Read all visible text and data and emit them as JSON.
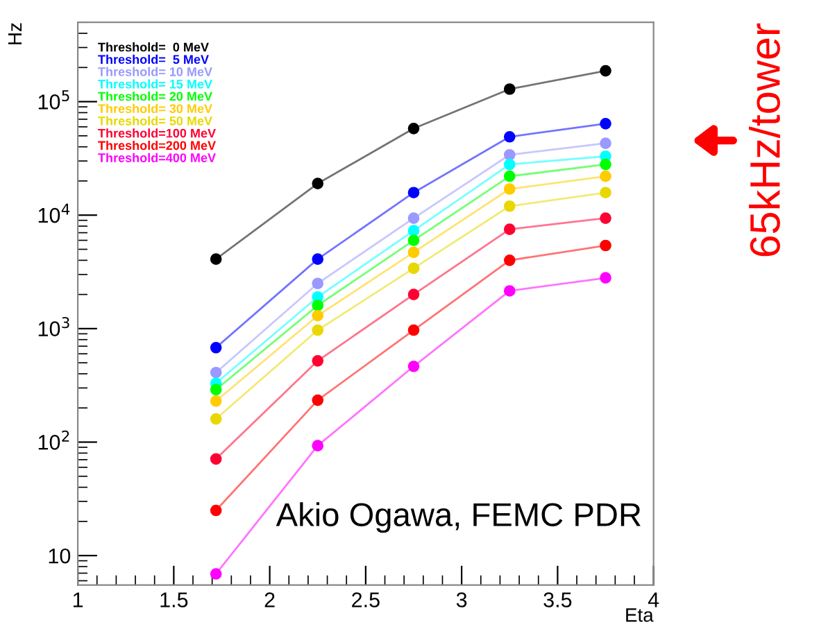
{
  "chart_data": {
    "type": "line",
    "xlabel": "Eta",
    "ylabel": "Hz",
    "log": "y",
    "marker": "circle",
    "line_style": "solid",
    "legend": "top left",
    "grid": false,
    "x": [
      1.72,
      2.25,
      2.75,
      3.25,
      3.75
    ],
    "xlim": [
      1,
      4
    ],
    "xticks": [
      1,
      1.5,
      2,
      2.5,
      3,
      3.5,
      4
    ],
    "ylim": [
      5.5,
      500000
    ],
    "yticks": [
      {
        "value": 10,
        "label": "10"
      },
      {
        "value": 100,
        "label": "10$^{2}$"
      },
      {
        "value": 1000,
        "label": "10$^{3}$"
      },
      {
        "value": 10000,
        "label": "10$^{4}$"
      },
      {
        "value": 100000,
        "label": "10$^{5}$"
      }
    ],
    "series": [
      {
        "name": "Threshold=  0 MeV",
        "color": "#000000",
        "values": [
          4100,
          19000,
          58000,
          129000,
          187000
        ]
      },
      {
        "name": "Threshold=  5 MeV",
        "color": "#0000ff",
        "values": [
          680,
          4100,
          15800,
          49000,
          64000
        ]
      },
      {
        "name": "Threshold= 10 MeV",
        "color": "#9999ff",
        "values": [
          410,
          2500,
          9400,
          34000,
          43000
        ]
      },
      {
        "name": "Threshold= 15 MeV",
        "color": "#00ffff",
        "values": [
          330,
          1900,
          7300,
          28000,
          33000
        ]
      },
      {
        "name": "Threshold= 20 MeV",
        "color": "#00ff00",
        "values": [
          290,
          1600,
          6000,
          22000,
          28000
        ]
      },
      {
        "name": "Threshold= 30 MeV",
        "color": "#ffcc00",
        "values": [
          230,
          1300,
          4700,
          17000,
          22000
        ]
      },
      {
        "name": "Threshold= 50 MeV",
        "color": "#e8d800",
        "values": [
          160,
          970,
          3400,
          12000,
          15800
        ]
      },
      {
        "name": "Threshold=100 MeV",
        "color": "#ff0033",
        "values": [
          71,
          520,
          2000,
          7500,
          9400
        ]
      },
      {
        "name": "Threshold=200 MeV",
        "color": "#ff0000",
        "values": [
          25,
          234,
          970,
          4000,
          5400
        ]
      },
      {
        "name": "Threshold=400 MeV",
        "color": "#ff00ff",
        "values": [
          6.9,
          93,
          465,
          2150,
          2800
        ]
      }
    ],
    "annotations": [
      "65kHz/tower",
      "Akio Ogawa, FEMC PDR"
    ]
  }
}
